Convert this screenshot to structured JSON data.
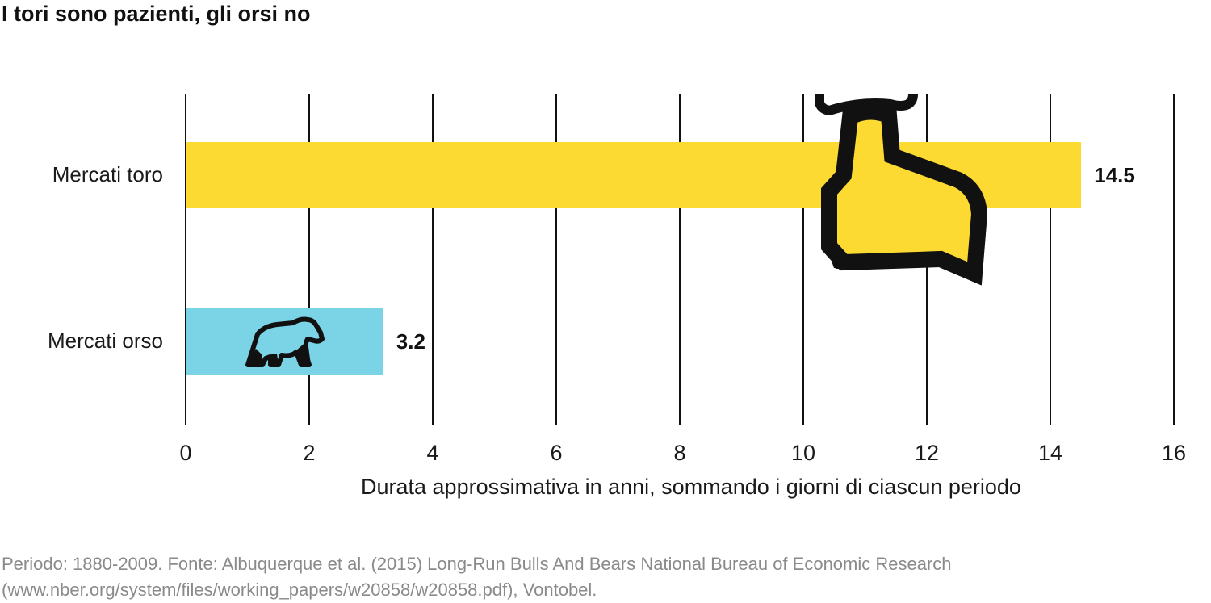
{
  "title": "I tori sono pazienti, gli orsi no",
  "colors": {
    "bull": "#FDDA32",
    "bear": "#7BD3E6",
    "grid": "#111111",
    "footer": "#8a8a8a"
  },
  "chart_data": {
    "type": "bar",
    "orientation": "horizontal",
    "title": "I tori sono pazienti, gli orsi no",
    "categories": [
      "Mercati toro",
      "Mercati orso"
    ],
    "values": [
      14.5,
      3.2
    ],
    "value_labels": [
      "14.5",
      "3.2"
    ],
    "xlabel": "Durata approssimativa in anni, sommando i giorni di ciascun periodo",
    "ylabel": "",
    "xlim": [
      0,
      16
    ],
    "xticks": [
      "0",
      "2",
      "4",
      "6",
      "8",
      "10",
      "12",
      "14",
      "16"
    ],
    "grid": "vertical lines at every tick",
    "legend": "none",
    "annotations": [
      "bull-icon over Mercati toro bar",
      "bear-icon inside Mercati orso bar"
    ]
  },
  "footer": {
    "line1": "Periodo: 1880-2009. Fonte: Albuquerque et al. (2015) Long-Run Bulls And Bears National Bureau of Economic Research",
    "line2": "(www.nber.org/system/files/working_papers/w20858/w20858.pdf), Vontobel."
  }
}
